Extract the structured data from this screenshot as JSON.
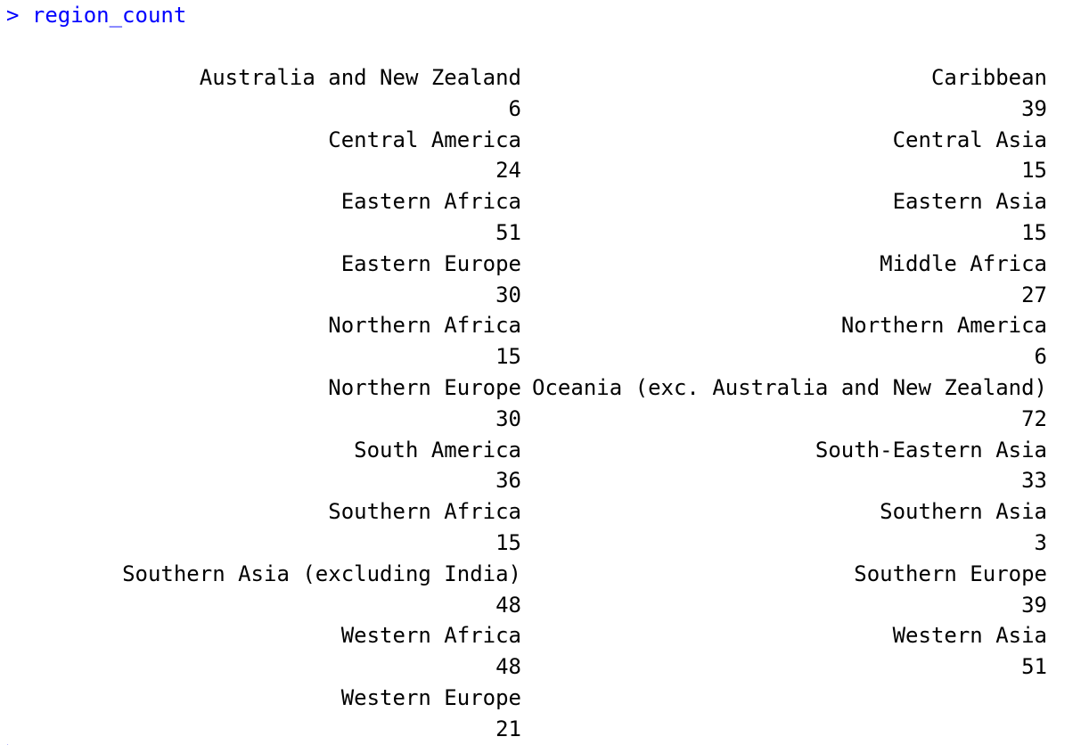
{
  "console": {
    "prompt_symbol": ">",
    "command": "region_count",
    "next_prompt_symbol": ">"
  },
  "output_rows": [
    {
      "left": "Australia and New Zealand",
      "right": "Caribbean"
    },
    {
      "left": "6",
      "right": "39"
    },
    {
      "left": "Central America",
      "right": "Central Asia"
    },
    {
      "left": "24",
      "right": "15"
    },
    {
      "left": "Eastern Africa",
      "right": "Eastern Asia"
    },
    {
      "left": "51",
      "right": "15"
    },
    {
      "left": "Eastern Europe",
      "right": "Middle Africa"
    },
    {
      "left": "30",
      "right": "27"
    },
    {
      "left": "Northern Africa",
      "right": "Northern America"
    },
    {
      "left": "15",
      "right": "6"
    },
    {
      "left": "Northern Europe",
      "right": "Oceania (exc. Australia and New Zealand)"
    },
    {
      "left": "30",
      "right": "72"
    },
    {
      "left": "South America",
      "right": "South-Eastern Asia"
    },
    {
      "left": "36",
      "right": "33"
    },
    {
      "left": "Southern Africa",
      "right": "Southern Asia"
    },
    {
      "left": "15",
      "right": "3"
    },
    {
      "left": "Southern Asia (excluding India)",
      "right": "Southern Europe"
    },
    {
      "left": "48",
      "right": "39"
    },
    {
      "left": "Western Africa",
      "right": "Western Asia"
    },
    {
      "left": "48",
      "right": "51"
    },
    {
      "left": "Western Europe",
      "right": ""
    },
    {
      "left": "21",
      "right": ""
    }
  ],
  "colors": {
    "prompt": "#0000ff",
    "output_text": "#000000",
    "background": "#ffffff"
  }
}
